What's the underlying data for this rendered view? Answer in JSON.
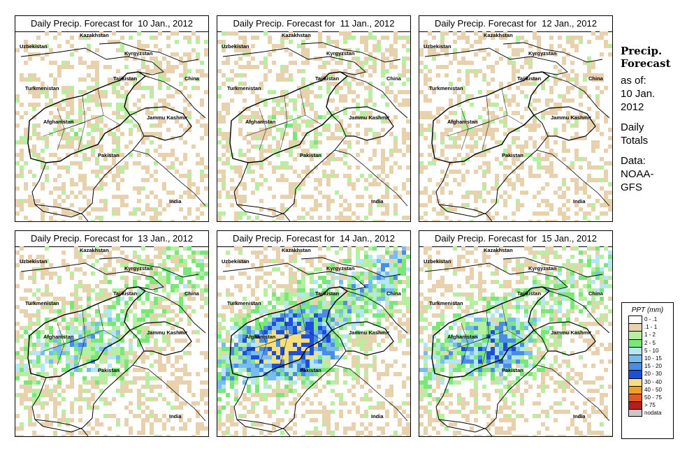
{
  "panels": [
    {
      "title": "Daily Precip. Forecast for  10 Jan., 2012",
      "intensity": 0.1
    },
    {
      "title": "Daily Precip. Forecast for  11 Jan., 2012",
      "intensity": 0.12
    },
    {
      "title": "Daily Precip. Forecast for  12 Jan., 2012",
      "intensity": 0.05
    },
    {
      "title": "Daily Precip. Forecast for  13 Jan., 2012",
      "intensity": 0.45
    },
    {
      "title": "Daily Precip. Forecast for  14 Jan., 2012",
      "intensity": 0.9
    },
    {
      "title": "Daily Precip. Forecast for  15 Jan., 2012",
      "intensity": 0.6
    }
  ],
  "place_labels": [
    "Kazakhstan",
    "Uzbekistan",
    "Kyrgyzstan",
    "Tajikistan",
    "China",
    "Turkmenistan",
    "Jammu Kashmir",
    "Afghanistan",
    "Pakistan",
    "India"
  ],
  "side": {
    "title_line1": "Precip.",
    "title_line2": "Forecast",
    "asof": "as of:",
    "date_line1": "10 Jan.",
    "date_line2": "2012",
    "totals_line1": "Daily",
    "totals_line2": "Totals",
    "data_line1": "Data:",
    "data_line2": "NOAA-",
    "data_line3": "GFS"
  },
  "legend": {
    "title": "PPT (mm)",
    "items": [
      {
        "label": "0 - .1",
        "color": "#ffffff"
      },
      {
        "label": ".1 - 1",
        "color": "#e8d2ae"
      },
      {
        "label": "1 - 2",
        "color": "#b5ef9f"
      },
      {
        "label": "2 - 5",
        "color": "#78e878"
      },
      {
        "label": "5 - 10",
        "color": "#b4e6f7"
      },
      {
        "label": "10 - 15",
        "color": "#78bdf0"
      },
      {
        "label": "15 - 20",
        "color": "#4a8de6"
      },
      {
        "label": "20 - 30",
        "color": "#1e4fdc"
      },
      {
        "label": "30 - 40",
        "color": "#f7e07a"
      },
      {
        "label": "40 - 50",
        "color": "#f0a028"
      },
      {
        "label": "50 - 75",
        "color": "#e35a1e"
      },
      {
        "label": "> 75",
        "color": "#b41e1e"
      },
      {
        "label": "nodata",
        "color": "#c8c8c8"
      }
    ]
  }
}
